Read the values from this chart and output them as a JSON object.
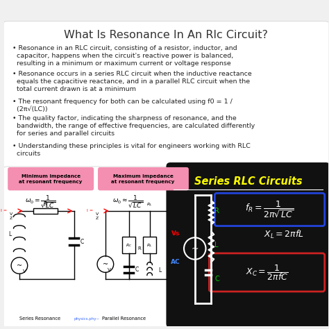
{
  "title": "What Is Resonance In An Rlc Circuit?",
  "title_fontsize": 11.5,
  "bg_color": "#f0f0f0",
  "bullet_points": [
    "Resonance in an RLC circuit, consisting of a resistor, inductor, and\n  capacitor, happens when the circuit's reactive power is balanced,\n  resulting in a minimum or maximum current or voltage response",
    "Resonance occurs in a series RLC circuit when the inductive reactance\n  equals the capacitive reactance, and in a parallel RLC circuit when the\n  total current drawn is at a minimum",
    "The resonant frequency for both can be calculated using f0 = 1 /\n  (2π√(LC))",
    "The quality factor, indicating the sharpness of resonance, and the\n  bandwidth, the range of effective frequencies, are calculated differently\n  for series and parallel circuits",
    "Understanding these principles is vital for engineers working with RLC\n  circuits"
  ],
  "bullet_fontsize": 6.8,
  "label_series": "Minimum impedance\nat resonant frequency",
  "label_parallel": "Maximum impedance\nat resonant frequency",
  "label_pink_bg": "#f48fb1",
  "bottom_bg": "#111111",
  "series_title": "Series RLC Circuits",
  "series_title_color": "#ffff00",
  "fr_box_color": "#2244dd",
  "xc_box_color": "#cc2222",
  "series_resonance_label": "Series Resonance",
  "parallel_resonance_label": "Parallel Resonance",
  "credit": "physics.phy~"
}
